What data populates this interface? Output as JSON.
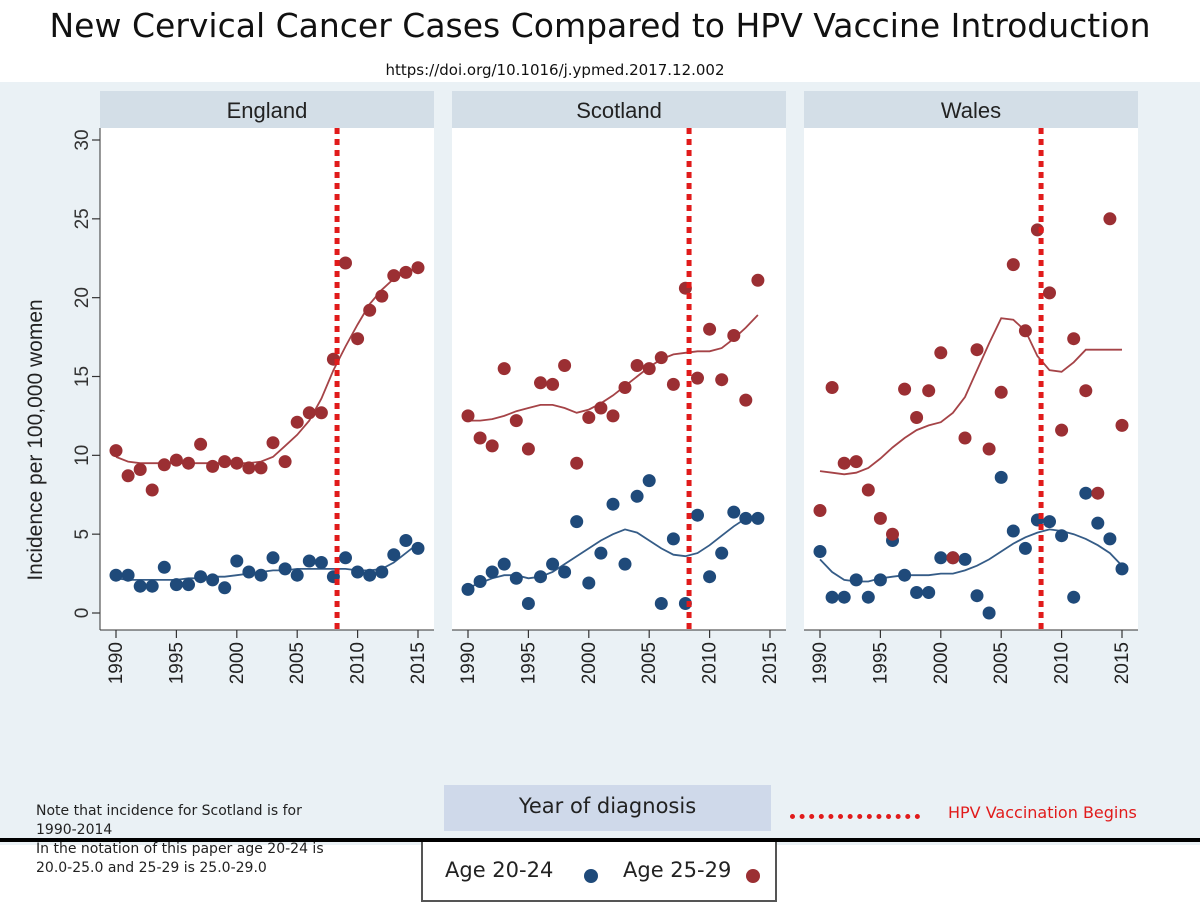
{
  "title": "New Cervical Cancer Cases Compared to HPV Vaccine Introduction",
  "doi": "https://doi.org/10.1016/j.ypmed.2017.12.002",
  "note_lines": [
    "Note that incidence for Scotland is for",
    "1990-2014",
    "In the notation of this paper age 20-24 is",
    "20.0-25.0 and 25-29 is 25.0-29.0"
  ],
  "legend": {
    "vaccination_label": "HPV Vaccination Begins",
    "series": [
      {
        "label": "Age 20-24",
        "color": "#1f4a7a"
      },
      {
        "label": "Age 25-29",
        "color": "#9b2f33"
      }
    ]
  },
  "colors": {
    "age_20_24": "#1f4a7a",
    "age_25_29": "#9b2f33",
    "vaccination_line": "#e11b1b",
    "panel_bg": "#ffffff",
    "frame_bg": "#eaf1f5",
    "panel_header_bg": "#d3dee7"
  },
  "chart_data": {
    "type": "scatter",
    "title": "New Cervical Cancer Cases Compared to HPV Vaccine Introduction",
    "xlabel": "Year of diagnosis",
    "ylabel": "Incidence per 100,000 women",
    "ylim": [
      0,
      30
    ],
    "yticks": [
      0,
      5,
      10,
      15,
      20,
      25,
      30
    ],
    "xlim": [
      1990,
      2015
    ],
    "xticks": [
      1990,
      1995,
      2000,
      2005,
      2010,
      2015
    ],
    "vaccination_year": 2008.3,
    "grid": false,
    "legend_position": "bottom",
    "panels": [
      {
        "name": "England",
        "series": [
          {
            "name": "Age 20-24",
            "color": "#1f4a7a",
            "x": [
              1990,
              1991,
              1992,
              1993,
              1994,
              1995,
              1996,
              1997,
              1998,
              1999,
              2000,
              2001,
              2002,
              2003,
              2004,
              2005,
              2006,
              2007,
              2008,
              2009,
              2010,
              2011,
              2012,
              2013,
              2014,
              2015
            ],
            "y": [
              2.4,
              2.4,
              1.7,
              1.7,
              2.9,
              1.8,
              1.8,
              2.3,
              2.1,
              1.6,
              3.3,
              2.6,
              2.4,
              3.5,
              2.8,
              2.4,
              3.3,
              3.2,
              2.3,
              3.5,
              2.6,
              2.4,
              2.6,
              3.7,
              4.6,
              4.1
            ],
            "trend": [
              2.2,
              2.1,
              2.1,
              2.1,
              2.1,
              2.1,
              2.2,
              2.2,
              2.3,
              2.3,
              2.4,
              2.5,
              2.6,
              2.7,
              2.7,
              2.8,
              2.8,
              2.8,
              2.8,
              2.8,
              2.7,
              2.7,
              2.8,
              3.2,
              3.8,
              4.4
            ]
          },
          {
            "name": "Age 25-29",
            "color": "#9b2f33",
            "x": [
              1990,
              1991,
              1992,
              1993,
              1994,
              1995,
              1996,
              1997,
              1998,
              1999,
              2000,
              2001,
              2002,
              2003,
              2004,
              2005,
              2006,
              2007,
              2008,
              2009,
              2010,
              2011,
              2012,
              2013,
              2014,
              2015
            ],
            "y": [
              10.3,
              8.7,
              9.1,
              7.8,
              9.4,
              9.7,
              9.5,
              10.7,
              9.3,
              9.6,
              9.5,
              9.2,
              9.2,
              10.8,
              9.6,
              12.1,
              12.7,
              12.7,
              16.1,
              22.2,
              17.4,
              19.2,
              20.1,
              21.4,
              21.6,
              21.9
            ],
            "trend": [
              9.9,
              9.6,
              9.5,
              9.5,
              9.5,
              9.5,
              9.5,
              9.5,
              9.5,
              9.5,
              9.5,
              9.5,
              9.6,
              9.9,
              10.6,
              11.3,
              12.2,
              13.6,
              15.4,
              16.9,
              18.3,
              19.6,
              20.5,
              21.2,
              21.6,
              21.9
            ]
          }
        ]
      },
      {
        "name": "Scotland",
        "series": [
          {
            "name": "Age 20-24",
            "color": "#1f4a7a",
            "x": [
              1990,
              1991,
              1992,
              1993,
              1994,
              1995,
              1996,
              1997,
              1998,
              1999,
              2000,
              2001,
              2002,
              2003,
              2004,
              2005,
              2006,
              2007,
              2008,
              2009,
              2010,
              2011,
              2012,
              2013,
              2014
            ],
            "y": [
              1.5,
              2.0,
              2.6,
              3.1,
              2.2,
              0.6,
              2.3,
              3.1,
              2.6,
              5.8,
              1.9,
              3.8,
              6.9,
              3.1,
              7.4,
              8.4,
              0.6,
              4.7,
              0.6,
              6.2,
              2.3,
              3.8,
              6.4,
              6.0,
              6.0
            ],
            "trend": [
              1.6,
              1.9,
              2.2,
              2.4,
              2.4,
              2.2,
              2.3,
              2.6,
              3.1,
              3.6,
              4.1,
              4.6,
              5.0,
              5.3,
              5.1,
              4.6,
              4.1,
              3.7,
              3.6,
              3.8,
              4.3,
              4.9,
              5.5,
              6.0,
              6.2
            ]
          },
          {
            "name": "Age 25-29",
            "color": "#9b2f33",
            "x": [
              1990,
              1991,
              1992,
              1993,
              1994,
              1995,
              1996,
              1997,
              1998,
              1999,
              2000,
              2001,
              2002,
              2003,
              2004,
              2005,
              2006,
              2007,
              2008,
              2009,
              2010,
              2011,
              2012,
              2013,
              2014
            ],
            "y": [
              12.5,
              11.1,
              10.6,
              15.5,
              12.2,
              10.4,
              14.6,
              14.5,
              15.7,
              9.5,
              12.4,
              13.0,
              12.5,
              14.3,
              15.7,
              15.5,
              16.2,
              14.5,
              20.6,
              14.9,
              18.0,
              14.8,
              17.6,
              13.5,
              21.1
            ],
            "trend": [
              12.2,
              12.2,
              12.3,
              12.5,
              12.8,
              13.0,
              13.2,
              13.2,
              13.0,
              12.7,
              12.9,
              13.3,
              13.8,
              14.4,
              15.0,
              15.6,
              16.1,
              16.4,
              16.5,
              16.6,
              16.6,
              16.8,
              17.4,
              18.1,
              18.9
            ]
          }
        ]
      },
      {
        "name": "Wales",
        "series": [
          {
            "name": "Age 20-24",
            "color": "#1f4a7a",
            "x": [
              1990,
              1991,
              1992,
              1993,
              1994,
              1995,
              1996,
              1997,
              1998,
              1999,
              2000,
              2001,
              2002,
              2003,
              2004,
              2005,
              2006,
              2007,
              2008,
              2009,
              2010,
              2011,
              2012,
              2013,
              2014,
              2015
            ],
            "y": [
              3.9,
              1.0,
              1.0,
              2.1,
              1.0,
              2.1,
              4.6,
              2.4,
              1.3,
              1.3,
              3.5,
              3.5,
              3.4,
              1.1,
              0.0,
              8.6,
              5.2,
              4.1,
              5.9,
              5.8,
              4.9,
              1.0,
              7.6,
              5.7,
              4.7,
              2.8
            ],
            "trend": [
              3.4,
              2.6,
              2.1,
              2.0,
              2.0,
              2.2,
              2.3,
              2.4,
              2.4,
              2.4,
              2.5,
              2.5,
              2.7,
              3.0,
              3.4,
              3.9,
              4.4,
              4.8,
              5.1,
              5.3,
              5.2,
              5.0,
              4.7,
              4.3,
              3.8,
              3.0
            ]
          },
          {
            "name": "Age 25-29",
            "color": "#9b2f33",
            "x": [
              1990,
              1991,
              1992,
              1993,
              1994,
              1995,
              1996,
              1997,
              1998,
              1999,
              2000,
              2001,
              2002,
              2003,
              2004,
              2005,
              2006,
              2007,
              2008,
              2009,
              2010,
              2011,
              2012,
              2013,
              2014,
              2015
            ],
            "y": [
              6.5,
              14.3,
              9.5,
              9.6,
              7.8,
              6.0,
              5.0,
              14.2,
              12.4,
              14.1,
              16.5,
              3.5,
              11.1,
              16.7,
              10.4,
              14.0,
              22.1,
              17.9,
              24.3,
              20.3,
              11.6,
              17.4,
              14.1,
              7.6,
              25.0,
              11.9
            ],
            "trend": [
              9.0,
              8.9,
              8.8,
              8.9,
              9.2,
              9.8,
              10.5,
              11.1,
              11.6,
              11.9,
              12.1,
              12.7,
              13.7,
              15.4,
              17.1,
              18.7,
              18.6,
              17.9,
              16.3,
              15.4,
              15.3,
              15.9,
              16.7,
              16.7,
              16.7,
              16.7
            ]
          }
        ]
      }
    ]
  }
}
